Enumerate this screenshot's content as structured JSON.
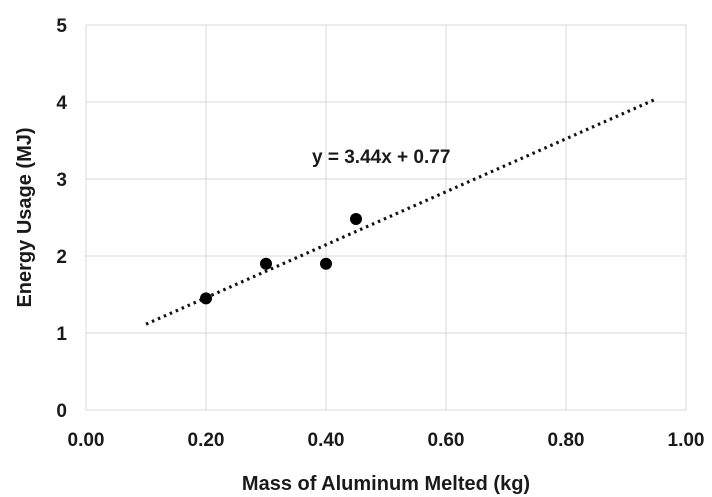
{
  "chart_data": {
    "type": "scatter",
    "title": "",
    "xlabel": "Mass of Aluminum Melted (kg)",
    "ylabel": "Energy Usage (MJ)",
    "xlim": [
      0,
      1.0
    ],
    "ylim": [
      0,
      5
    ],
    "x_ticks": [
      "0.00",
      "0.20",
      "0.40",
      "0.60",
      "0.80",
      "1.00"
    ],
    "y_ticks": [
      "0",
      "1",
      "2",
      "3",
      "4",
      "5"
    ],
    "grid": true,
    "legend": "none",
    "series": [
      {
        "marker": "circle",
        "color": "#000000",
        "points": [
          {
            "x": 0.2,
            "y": 1.45
          },
          {
            "x": 0.3,
            "y": 1.9
          },
          {
            "x": 0.4,
            "y": 1.9
          },
          {
            "x": 0.45,
            "y": 2.48
          }
        ]
      }
    ],
    "trendline": {
      "style": "dotted",
      "slope": 3.44,
      "intercept": 0.77,
      "x_range": [
        0.1,
        0.95
      ],
      "label": "y = 3.44x + 0.77"
    }
  }
}
